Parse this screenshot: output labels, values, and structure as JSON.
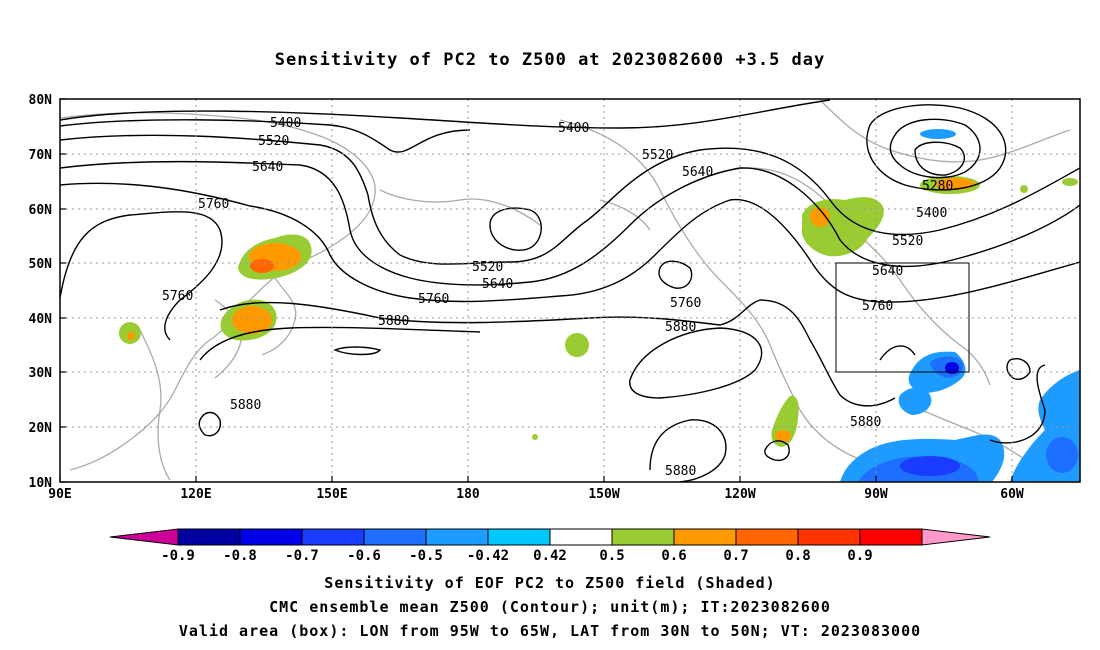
{
  "title": "Sensitivity of PC2 to Z500 at 2023082600 +3.5 day",
  "map": {
    "lon_ticks": [
      "90E",
      "120E",
      "150E",
      "180",
      "150W",
      "120W",
      "90W",
      "60W"
    ],
    "lat_ticks": [
      "80N",
      "70N",
      "60N",
      "50N",
      "40N",
      "30N",
      "20N",
      "10N"
    ],
    "valid_box": {
      "lon": [
        "95W",
        "65W"
      ],
      "lat": [
        "30N",
        "50N"
      ]
    },
    "contour_labels": [
      "5400",
      "5400",
      "5520",
      "5520",
      "5520",
      "5520",
      "5640",
      "5640",
      "5640",
      "5640",
      "5760",
      "5760",
      "5760",
      "5760",
      "5760",
      "5880",
      "5880",
      "5880",
      "5880",
      "5880",
      "5280",
      "5400"
    ]
  },
  "colorbar": {
    "labels": [
      "-0.9",
      "-0.8",
      "-0.7",
      "-0.6",
      "-0.5",
      "-0.42",
      "0.42",
      "0.5",
      "0.6",
      "0.7",
      "0.8",
      "0.9"
    ],
    "colors": [
      "#cc0099",
      "#0000a0",
      "#0000e6",
      "#1a3cff",
      "#1e6eff",
      "#1e9bff",
      "#00c8ff",
      "#ffffff",
      "#99cc33",
      "#ff9900",
      "#ff6600",
      "#ff3300",
      "#ff0000",
      "#ff99cc"
    ]
  },
  "captions": [
    "Sensitivity of EOF PC2 to Z500 field (Shaded)",
    "CMC ensemble mean Z500 (Contour); unit(m); IT:2023082600",
    "Valid area (box): LON from 95W to 65W, LAT from 30N to 50N; VT: 2023083000"
  ]
}
